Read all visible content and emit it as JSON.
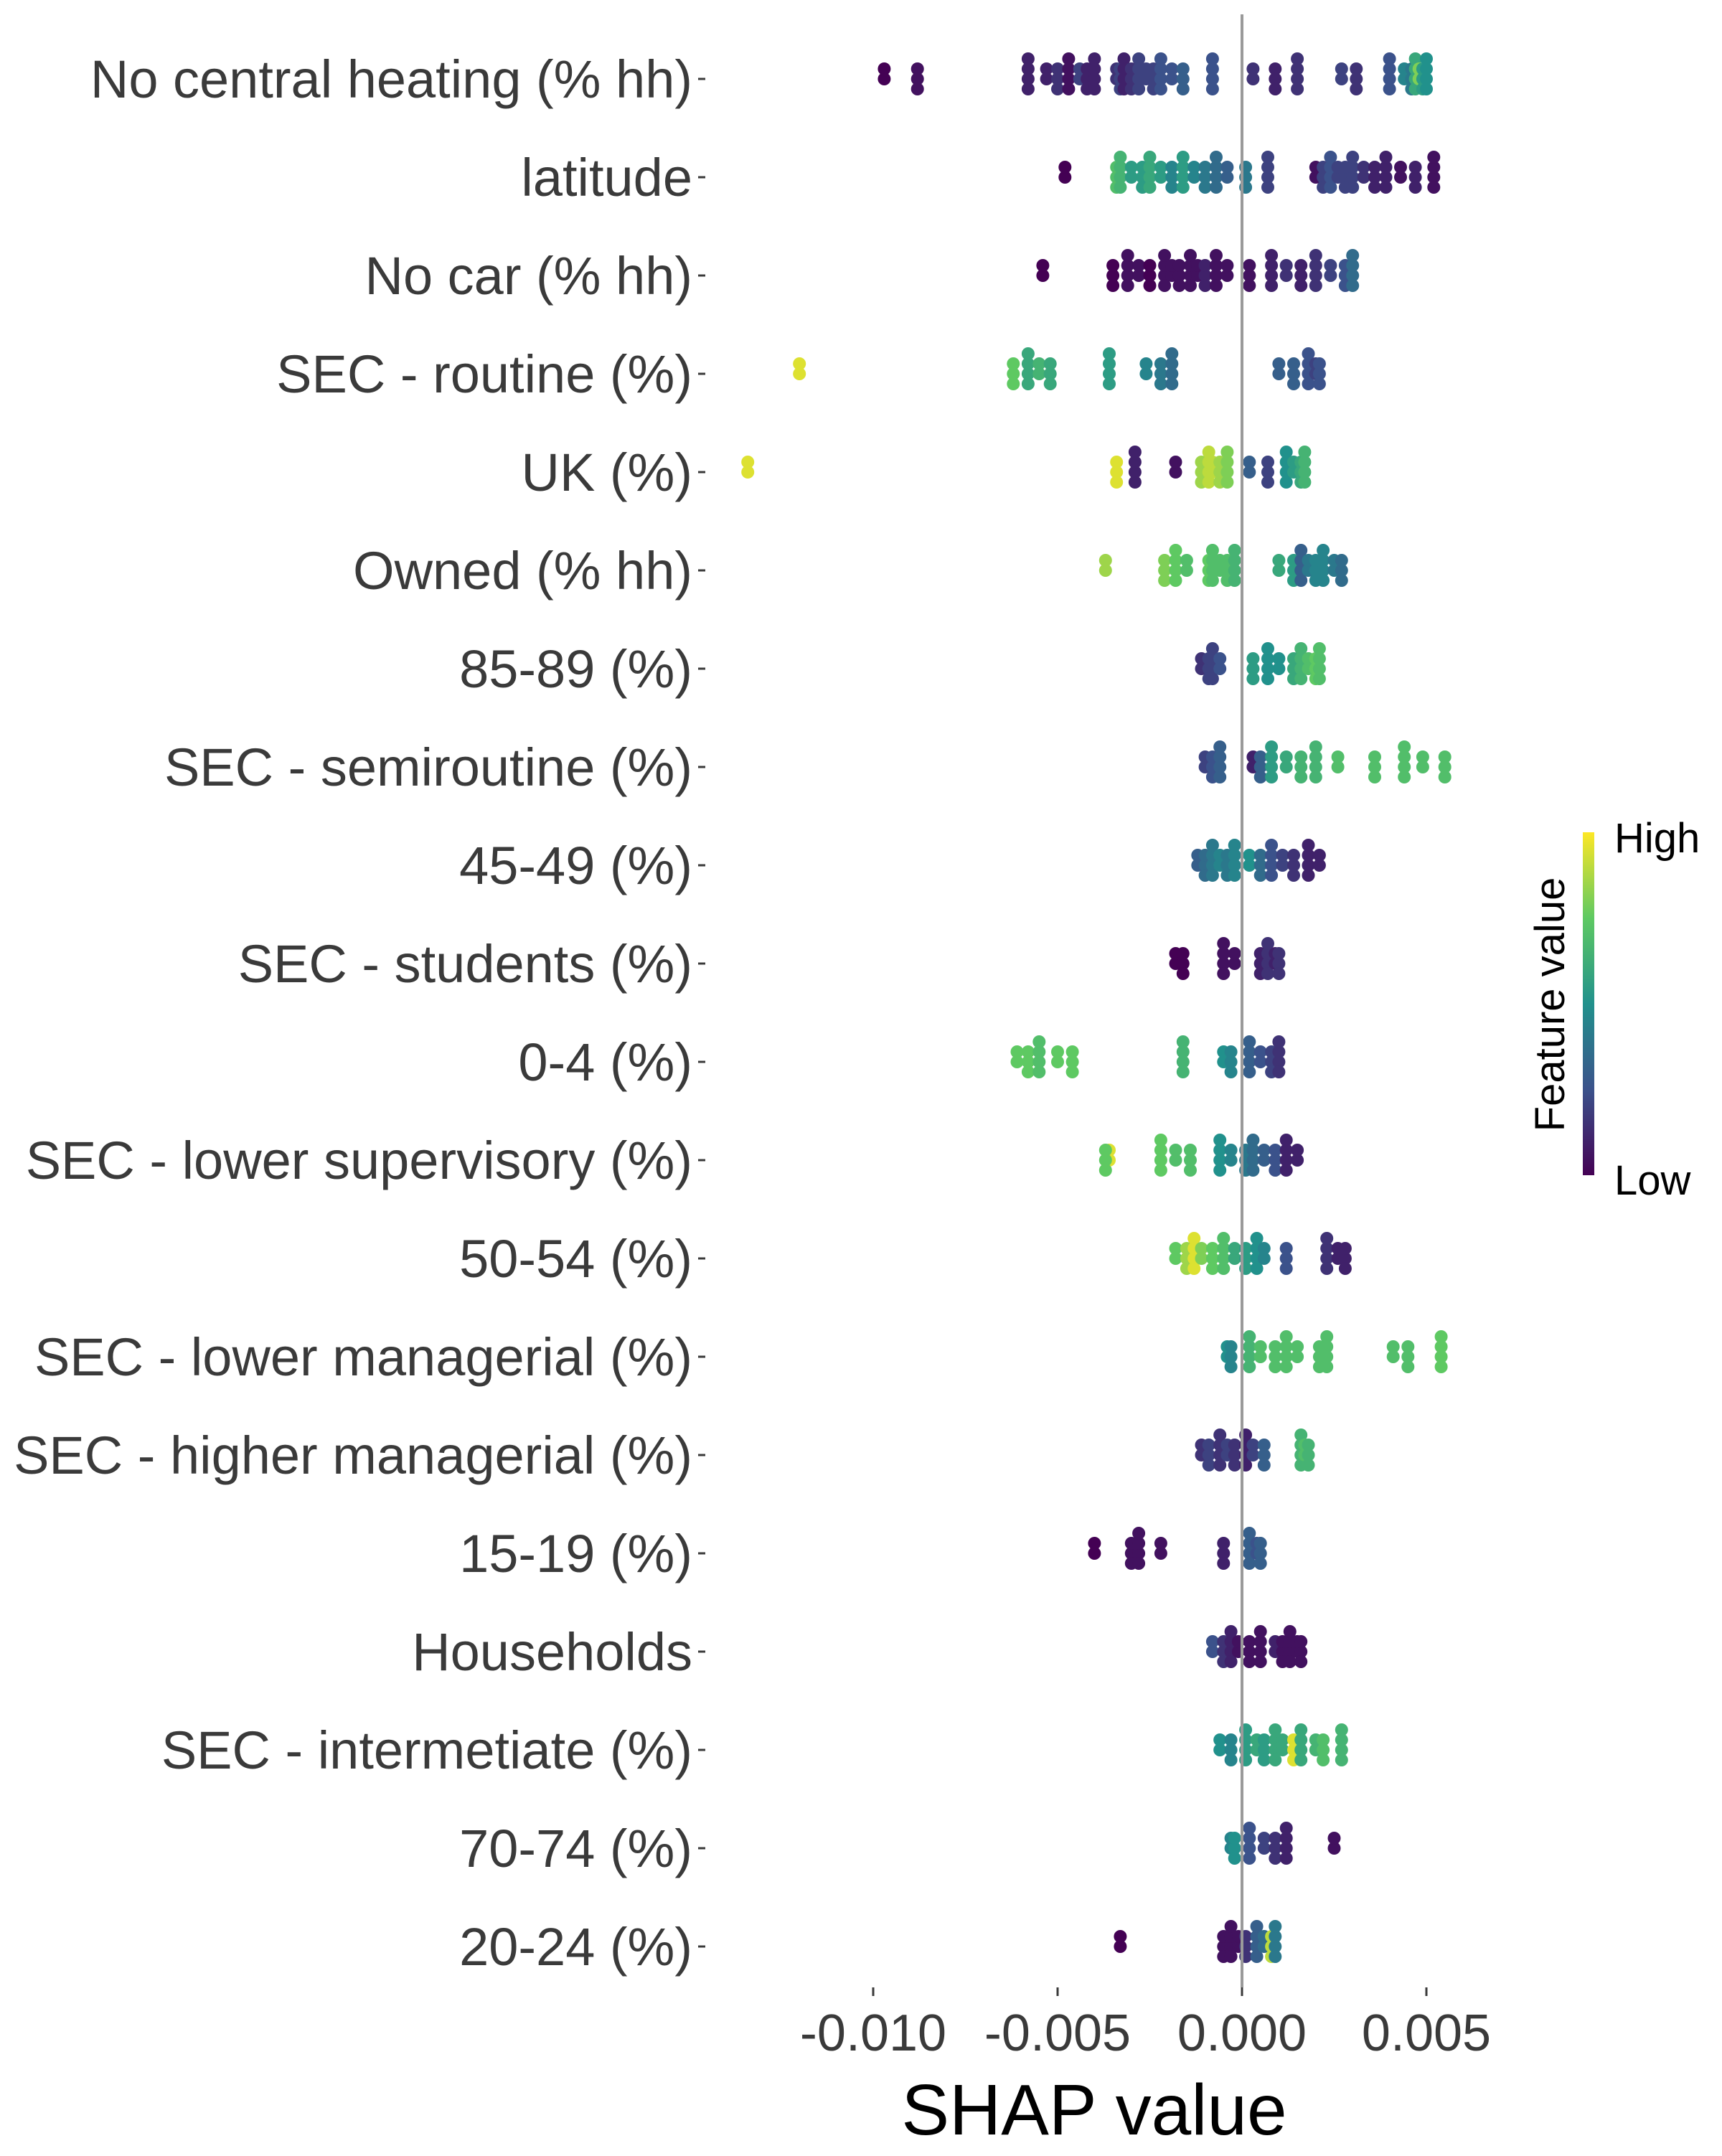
{
  "chart_data": {
    "type": "scatter",
    "subtype": "shap-beeswarm",
    "title": "",
    "xlabel": "SHAP value",
    "ylabel": "",
    "xlim": [
      -0.0125,
      0.0065
    ],
    "x_ticks": [
      -0.01,
      -0.005,
      0.0,
      0.005
    ],
    "x_tick_labels": [
      "-0.010",
      "-0.005",
      "0.000",
      "0.005"
    ],
    "zero_line": 0.0,
    "grid": false,
    "legend": {
      "title": "Feature value",
      "high_label": "High",
      "low_label": "Low",
      "placement": "right",
      "colorscale": [
        "#440154",
        "#3b528b",
        "#21918c",
        "#5ec962",
        "#fde725"
      ]
    },
    "features": [
      {
        "name": "No central heating (% hh)",
        "points": [
          [
            -0.0097,
            0.0
          ],
          [
            -0.0088,
            0.05
          ],
          [
            -0.0058,
            0.1
          ],
          [
            -0.0053,
            0.1
          ],
          [
            -0.005,
            0.15
          ],
          [
            -0.0047,
            0.05
          ],
          [
            -0.0044,
            0.2
          ],
          [
            -0.0042,
            0.1
          ],
          [
            -0.004,
            0.1
          ],
          [
            -0.0034,
            0.15
          ],
          [
            -0.0033,
            0.2
          ],
          [
            -0.0032,
            0.1
          ],
          [
            -0.0031,
            0.1
          ],
          [
            -0.003,
            0.15
          ],
          [
            -0.0028,
            0.2
          ],
          [
            -0.0026,
            0.2
          ],
          [
            -0.0024,
            0.2
          ],
          [
            -0.0022,
            0.25
          ],
          [
            -0.0019,
            0.25
          ],
          [
            -0.0016,
            0.3
          ],
          [
            -0.0008,
            0.25
          ],
          [
            0.0003,
            0.15
          ],
          [
            0.0009,
            0.1
          ],
          [
            0.0015,
            0.15
          ],
          [
            0.0027,
            0.2
          ],
          [
            0.0031,
            0.15
          ],
          [
            0.004,
            0.25
          ],
          [
            0.0044,
            0.45
          ],
          [
            0.0046,
            0.4
          ],
          [
            0.0047,
            0.6
          ],
          [
            0.0048,
            0.8
          ],
          [
            0.0049,
            0.55
          ],
          [
            0.005,
            0.5
          ]
        ]
      },
      {
        "name": "latitude",
        "points": [
          [
            -0.0048,
            0.0
          ],
          [
            -0.0034,
            0.7
          ],
          [
            -0.0033,
            0.65
          ],
          [
            -0.003,
            0.55
          ],
          [
            -0.0027,
            0.55
          ],
          [
            -0.0025,
            0.6
          ],
          [
            -0.0022,
            0.55
          ],
          [
            -0.0019,
            0.45
          ],
          [
            -0.0016,
            0.55
          ],
          [
            -0.0013,
            0.45
          ],
          [
            -0.001,
            0.4
          ],
          [
            -0.0007,
            0.35
          ],
          [
            -0.0004,
            0.3
          ],
          [
            0.0001,
            0.4
          ],
          [
            0.0007,
            0.2
          ],
          [
            0.002,
            0.05
          ],
          [
            0.0022,
            0.2
          ],
          [
            0.0024,
            0.25
          ],
          [
            0.0026,
            0.2
          ],
          [
            0.0028,
            0.2
          ],
          [
            0.003,
            0.2
          ],
          [
            0.0033,
            0.15
          ],
          [
            0.0036,
            0.1
          ],
          [
            0.0039,
            0.1
          ],
          [
            0.0043,
            0.05
          ],
          [
            0.0047,
            0.1
          ],
          [
            0.0052,
            0.05
          ]
        ]
      },
      {
        "name": "No car (% hh)",
        "points": [
          [
            -0.0054,
            0.0
          ],
          [
            -0.0035,
            0.0
          ],
          [
            -0.0031,
            0.05
          ],
          [
            -0.0028,
            0.05
          ],
          [
            -0.0025,
            0.0
          ],
          [
            -0.0021,
            0.05
          ],
          [
            -0.0019,
            0.05
          ],
          [
            -0.0017,
            0.05
          ],
          [
            -0.0014,
            0.05
          ],
          [
            -0.0012,
            0.05
          ],
          [
            -0.001,
            0.1
          ],
          [
            -0.0007,
            0.05
          ],
          [
            -0.0004,
            0.05
          ],
          [
            0.0002,
            0.05
          ],
          [
            0.0008,
            0.1
          ],
          [
            0.0012,
            0.15
          ],
          [
            0.0016,
            0.1
          ],
          [
            0.002,
            0.15
          ],
          [
            0.0024,
            0.2
          ],
          [
            0.0028,
            0.25
          ],
          [
            0.003,
            0.35
          ]
        ]
      },
      {
        "name": "SEC - routine (%)",
        "points": [
          [
            -0.012,
            0.95
          ],
          [
            -0.0062,
            0.75
          ],
          [
            -0.0058,
            0.6
          ],
          [
            -0.0055,
            0.65
          ],
          [
            -0.0052,
            0.6
          ],
          [
            -0.0036,
            0.55
          ],
          [
            -0.0026,
            0.45
          ],
          [
            -0.0022,
            0.4
          ],
          [
            -0.0019,
            0.35
          ],
          [
            0.001,
            0.3
          ],
          [
            0.0014,
            0.3
          ],
          [
            0.0018,
            0.25
          ],
          [
            0.002,
            0.2
          ],
          [
            0.0021,
            0.25
          ]
        ]
      },
      {
        "name": "UK (%)",
        "points": [
          [
            -0.0134,
            0.95
          ],
          [
            -0.0034,
            0.95
          ],
          [
            -0.0029,
            0.1
          ],
          [
            -0.0018,
            0.05
          ],
          [
            -0.0011,
            0.85
          ],
          [
            -0.0009,
            0.9
          ],
          [
            -0.0008,
            0.9
          ],
          [
            -0.0006,
            0.85
          ],
          [
            -0.0004,
            0.8
          ],
          [
            0.0002,
            0.3
          ],
          [
            0.0007,
            0.2
          ],
          [
            0.0012,
            0.5
          ],
          [
            0.0014,
            0.55
          ],
          [
            0.0016,
            0.6
          ],
          [
            0.0017,
            0.65
          ]
        ]
      },
      {
        "name": "Owned (% hh)",
        "points": [
          [
            -0.0037,
            0.85
          ],
          [
            -0.0021,
            0.8
          ],
          [
            -0.0018,
            0.75
          ],
          [
            -0.0015,
            0.7
          ],
          [
            -0.0009,
            0.75
          ],
          [
            -0.0008,
            0.7
          ],
          [
            -0.0006,
            0.7
          ],
          [
            -0.0004,
            0.7
          ],
          [
            -0.0002,
            0.65
          ],
          [
            0.001,
            0.6
          ],
          [
            0.0014,
            0.55
          ],
          [
            0.0016,
            0.3
          ],
          [
            0.0018,
            0.4
          ],
          [
            0.002,
            0.45
          ],
          [
            0.0022,
            0.45
          ],
          [
            0.0025,
            0.4
          ],
          [
            0.0027,
            0.35
          ]
        ]
      },
      {
        "name": "85-89 (%)",
        "points": [
          [
            -0.0011,
            0.15
          ],
          [
            -0.0009,
            0.2
          ],
          [
            -0.0008,
            0.2
          ],
          [
            -0.0006,
            0.25
          ],
          [
            0.0003,
            0.55
          ],
          [
            0.0007,
            0.5
          ],
          [
            0.001,
            0.5
          ],
          [
            0.0014,
            0.6
          ],
          [
            0.0016,
            0.65
          ],
          [
            0.0018,
            0.7
          ],
          [
            0.002,
            0.75
          ],
          [
            0.0021,
            0.7
          ]
        ]
      },
      {
        "name": "SEC - semiroutine (%)",
        "points": [
          [
            -0.001,
            0.2
          ],
          [
            -0.0008,
            0.25
          ],
          [
            -0.0006,
            0.3
          ],
          [
            0.0003,
            0.1
          ],
          [
            0.0005,
            0.3
          ],
          [
            0.0008,
            0.55
          ],
          [
            0.0012,
            0.6
          ],
          [
            0.0016,
            0.65
          ],
          [
            0.002,
            0.65
          ],
          [
            0.0026,
            0.7
          ],
          [
            0.0036,
            0.7
          ],
          [
            0.0044,
            0.7
          ],
          [
            0.0049,
            0.7
          ],
          [
            0.0055,
            0.7
          ]
        ]
      },
      {
        "name": "45-49 (%)",
        "points": [
          [
            -0.0012,
            0.3
          ],
          [
            -0.001,
            0.35
          ],
          [
            -0.0008,
            0.4
          ],
          [
            -0.0006,
            0.45
          ],
          [
            -0.0004,
            0.4
          ],
          [
            -0.0002,
            0.45
          ],
          [
            0.0002,
            0.5
          ],
          [
            0.0005,
            0.35
          ],
          [
            0.0008,
            0.25
          ],
          [
            0.0011,
            0.2
          ],
          [
            0.0014,
            0.15
          ],
          [
            0.0018,
            0.1
          ],
          [
            0.0021,
            0.1
          ]
        ]
      },
      {
        "name": "SEC - students (%)",
        "points": [
          [
            -0.0018,
            0.0
          ],
          [
            -0.0016,
            0.0
          ],
          [
            -0.0005,
            0.05
          ],
          [
            -0.0002,
            0.05
          ],
          [
            0.0005,
            0.1
          ],
          [
            0.0007,
            0.15
          ],
          [
            0.0009,
            0.1
          ],
          [
            0.001,
            0.15
          ]
        ]
      },
      {
        "name": "0-4 (%)",
        "points": [
          [
            -0.0061,
            0.75
          ],
          [
            -0.0058,
            0.75
          ],
          [
            -0.0055,
            0.7
          ],
          [
            -0.005,
            0.75
          ],
          [
            -0.0046,
            0.75
          ],
          [
            -0.0016,
            0.65
          ],
          [
            -0.0005,
            0.5
          ],
          [
            -0.0003,
            0.45
          ],
          [
            0.0002,
            0.3
          ],
          [
            0.0005,
            0.25
          ],
          [
            0.0008,
            0.2
          ],
          [
            0.001,
            0.15
          ]
        ]
      },
      {
        "name": "SEC - lower supervisory (%)",
        "points": [
          [
            -0.0036,
            0.95
          ],
          [
            -0.0037,
            0.75
          ],
          [
            -0.0022,
            0.75
          ],
          [
            -0.0018,
            0.7
          ],
          [
            -0.0014,
            0.7
          ],
          [
            -0.0006,
            0.5
          ],
          [
            -0.0003,
            0.45
          ],
          [
            0.0001,
            0.4
          ],
          [
            0.0003,
            0.35
          ],
          [
            0.0006,
            0.3
          ],
          [
            0.0009,
            0.25
          ],
          [
            0.0012,
            0.1
          ],
          [
            0.0015,
            0.1
          ]
        ]
      },
      {
        "name": "50-54 (%)",
        "points": [
          [
            -0.0018,
            0.75
          ],
          [
            -0.0015,
            0.85
          ],
          [
            -0.0013,
            0.95
          ],
          [
            -0.0011,
            0.8
          ],
          [
            -0.0008,
            0.75
          ],
          [
            -0.0005,
            0.7
          ],
          [
            -0.0002,
            0.6
          ],
          [
            0.0001,
            0.55
          ],
          [
            0.0004,
            0.5
          ],
          [
            0.0006,
            0.45
          ],
          [
            0.0012,
            0.25
          ],
          [
            0.0023,
            0.15
          ],
          [
            0.0026,
            0.1
          ],
          [
            0.0028,
            0.1
          ]
        ]
      },
      {
        "name": "SEC - lower managerial (%)",
        "points": [
          [
            -0.0004,
            0.5
          ],
          [
            -0.0003,
            0.45
          ],
          [
            0.0002,
            0.65
          ],
          [
            0.0005,
            0.7
          ],
          [
            0.0009,
            0.7
          ],
          [
            0.0012,
            0.7
          ],
          [
            0.0015,
            0.7
          ],
          [
            0.0021,
            0.7
          ],
          [
            0.0023,
            0.7
          ],
          [
            0.0041,
            0.7
          ],
          [
            0.0045,
            0.7
          ],
          [
            0.0054,
            0.75
          ]
        ]
      },
      {
        "name": "SEC - higher managerial (%)",
        "points": [
          [
            -0.0011,
            0.15
          ],
          [
            -0.0009,
            0.2
          ],
          [
            -0.0006,
            0.15
          ],
          [
            -0.0004,
            0.2
          ],
          [
            -0.0002,
            0.15
          ],
          [
            0.0001,
            0.1
          ],
          [
            0.0003,
            0.2
          ],
          [
            0.0006,
            0.3
          ],
          [
            0.0016,
            0.65
          ],
          [
            0.0017,
            0.7
          ],
          [
            0.0018,
            0.65
          ]
        ]
      },
      {
        "name": "15-19 (%)",
        "points": [
          [
            -0.004,
            0.0
          ],
          [
            -0.003,
            0.05
          ],
          [
            -0.0028,
            0.05
          ],
          [
            -0.0022,
            0.05
          ],
          [
            -0.0005,
            0.1
          ],
          [
            0.0002,
            0.3
          ],
          [
            0.0004,
            0.25
          ],
          [
            0.0005,
            0.3
          ]
        ]
      },
      {
        "name": "Households",
        "points": [
          [
            -0.0008,
            0.25
          ],
          [
            -0.0005,
            0.15
          ],
          [
            -0.0003,
            0.1
          ],
          [
            -0.0001,
            0.05
          ],
          [
            0.0002,
            0.05
          ],
          [
            0.0005,
            0.05
          ],
          [
            0.0009,
            0.1
          ],
          [
            0.0011,
            0.05
          ],
          [
            0.0013,
            0.05
          ],
          [
            0.0015,
            0.05
          ],
          [
            0.0016,
            0.05
          ]
        ]
      },
      {
        "name": "SEC - intermetiate (%)",
        "points": [
          [
            -0.0006,
            0.5
          ],
          [
            -0.0003,
            0.45
          ],
          [
            0.0001,
            0.55
          ],
          [
            0.0004,
            0.6
          ],
          [
            0.0006,
            0.55
          ],
          [
            0.0009,
            0.6
          ],
          [
            0.0011,
            0.6
          ],
          [
            0.0014,
            0.95
          ],
          [
            0.0016,
            0.6
          ],
          [
            0.002,
            0.65
          ],
          [
            0.0022,
            0.7
          ],
          [
            0.0027,
            0.65
          ]
        ]
      },
      {
        "name": "70-74 (%)",
        "points": [
          [
            -0.0003,
            0.45
          ],
          [
            -0.0002,
            0.5
          ],
          [
            0.0002,
            0.25
          ],
          [
            0.0006,
            0.2
          ],
          [
            0.0009,
            0.15
          ],
          [
            0.0012,
            0.1
          ],
          [
            0.0025,
            0.05
          ]
        ]
      },
      {
        "name": "20-24 (%)",
        "points": [
          [
            -0.0033,
            0.0
          ],
          [
            -0.0005,
            0.05
          ],
          [
            -0.0003,
            0.05
          ],
          [
            -0.0001,
            0.05
          ],
          [
            0.0001,
            0.15
          ],
          [
            0.0004,
            0.3
          ],
          [
            0.0006,
            0.35
          ],
          [
            0.0008,
            0.9
          ],
          [
            0.0009,
            0.4
          ]
        ]
      }
    ]
  }
}
